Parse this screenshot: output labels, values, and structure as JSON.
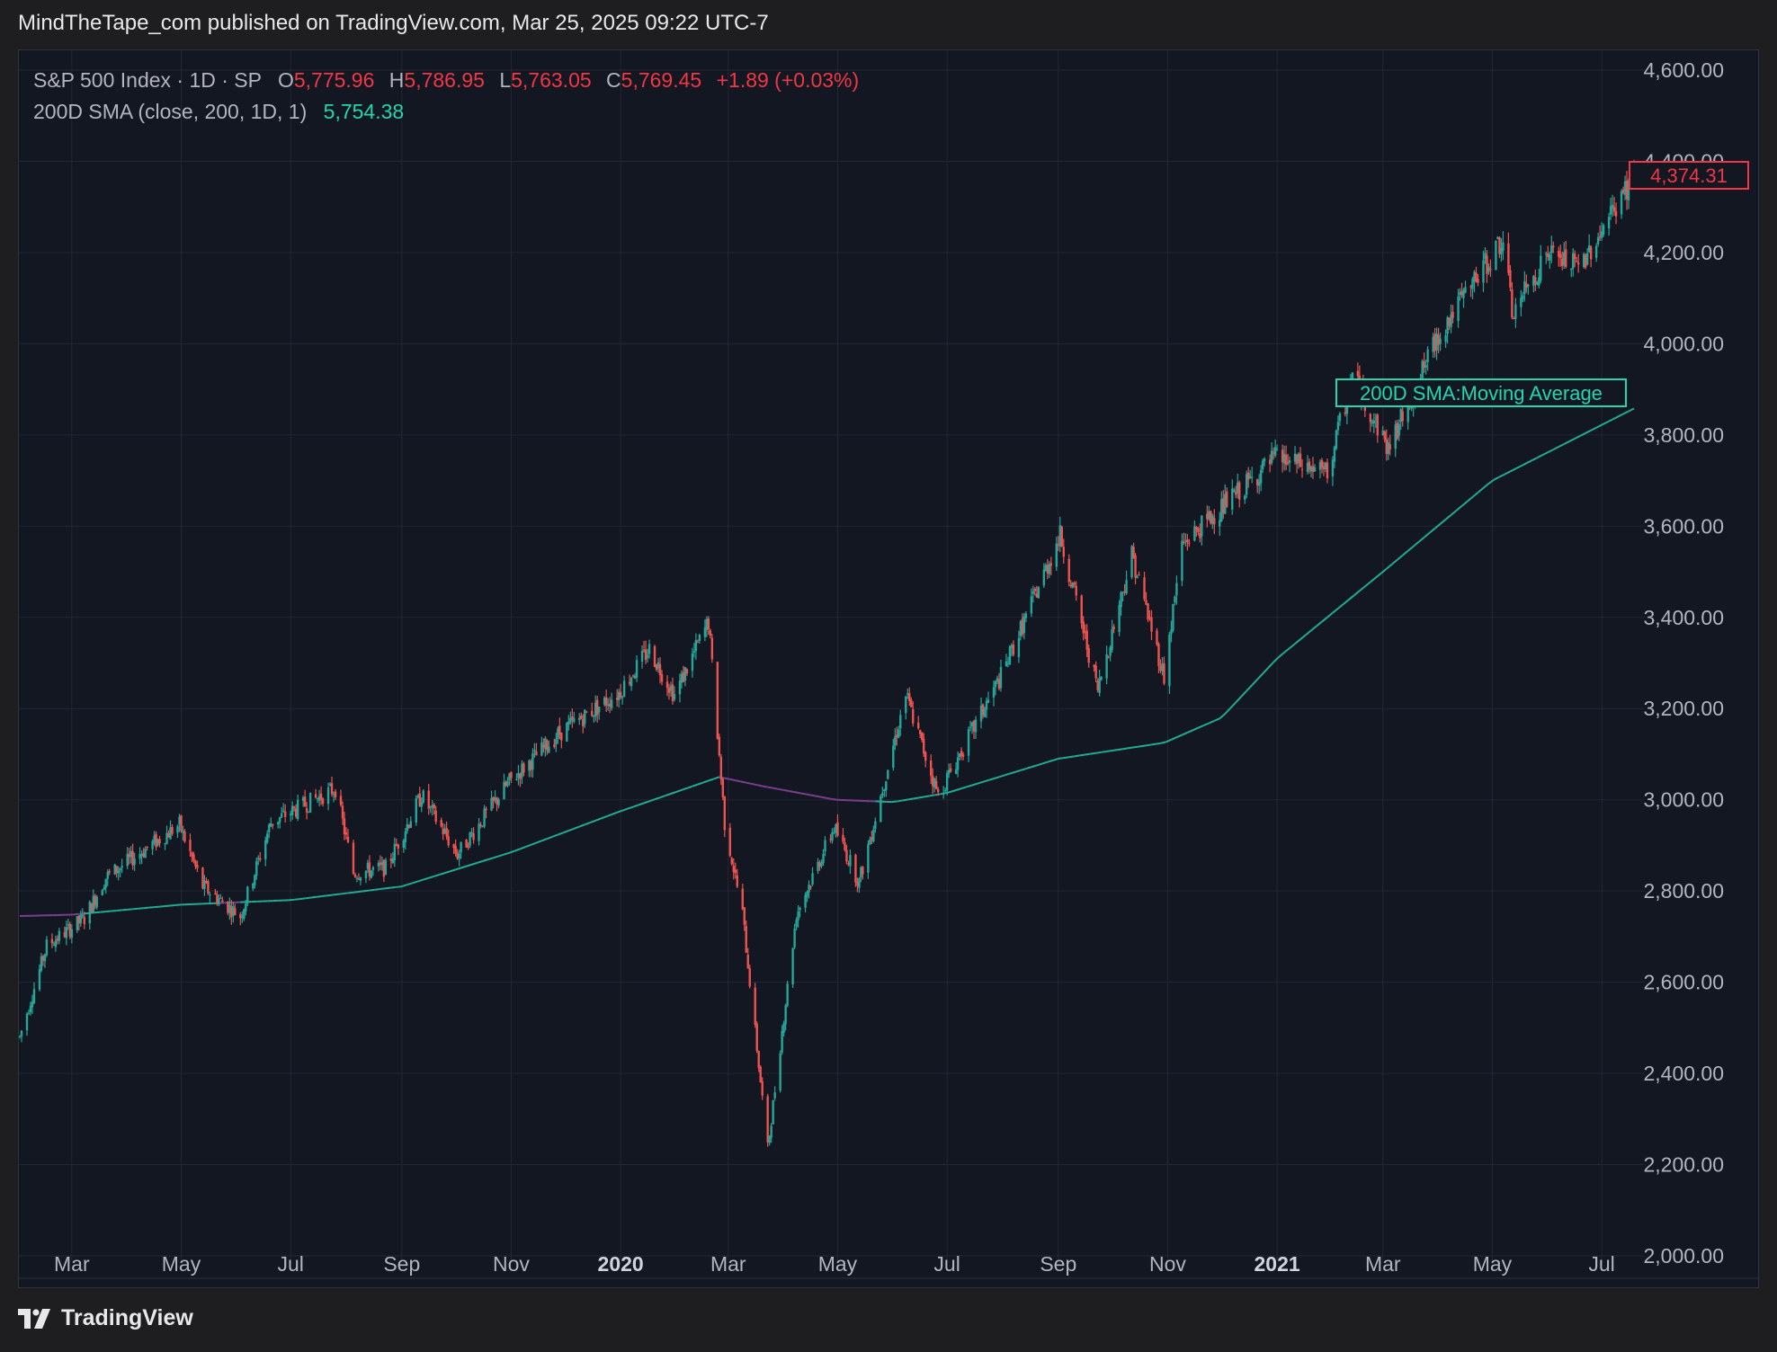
{
  "header": {
    "publisher": "MindTheTape_com published on TradingView.com, Mar 25, 2025 09:22 UTC-7"
  },
  "legend": {
    "symbol_line": "S&P 500 Index · 1D · SP",
    "open_label": "O",
    "open": "5,775.96",
    "high_label": "H",
    "high": "5,786.95",
    "low_label": "L",
    "low": "5,763.05",
    "close_label": "C",
    "close": "5,769.45",
    "change": "+1.89 (+0.03%)",
    "sma_line": "200D SMA (close, 200, 1D, 1)",
    "sma_value": "5,754.38"
  },
  "annotation": {
    "label": "200D SMA:Moving Average"
  },
  "price_tag": "4,374.31",
  "footer": {
    "brand": "TradingView",
    "logo_icon": "tradingview-logo-icon"
  },
  "colors": {
    "background": "#131722",
    "up": "#26a69a",
    "down": "#ef5350",
    "sma_above": "#22ab94",
    "sma_below": "#7b3e8f",
    "text": "#b2b5be",
    "grid": "#232733"
  },
  "chart_data": {
    "type": "candlestick",
    "title": "S&P 500 Index · 1D · SP",
    "ylim": [
      1950,
      4650
    ],
    "y_ticks": [
      "4,600.00",
      "4,400.00",
      "4,200.00",
      "4,000.00",
      "3,800.00",
      "3,600.00",
      "3,400.00",
      "3,200.00",
      "3,000.00",
      "2,800.00",
      "2,600.00",
      "2,400.00",
      "2,200.00",
      "2,000.00"
    ],
    "y_tick_values": [
      4600,
      4400,
      4200,
      4000,
      3800,
      3600,
      3400,
      3200,
      3000,
      2800,
      2600,
      2400,
      2200,
      2000
    ],
    "x_ticks": [
      {
        "label": "Mar",
        "date": "2019-03-01",
        "bold": false
      },
      {
        "label": "May",
        "date": "2019-05-01",
        "bold": false
      },
      {
        "label": "Jul",
        "date": "2019-07-01",
        "bold": false
      },
      {
        "label": "Sep",
        "date": "2019-09-01",
        "bold": false
      },
      {
        "label": "Nov",
        "date": "2019-11-01",
        "bold": false
      },
      {
        "label": "2020",
        "date": "2020-01-01",
        "bold": true
      },
      {
        "label": "Mar",
        "date": "2020-03-01",
        "bold": false
      },
      {
        "label": "May",
        "date": "2020-05-01",
        "bold": false
      },
      {
        "label": "Jul",
        "date": "2020-07-01",
        "bold": false
      },
      {
        "label": "Sep",
        "date": "2020-09-01",
        "bold": false
      },
      {
        "label": "Nov",
        "date": "2020-11-01",
        "bold": false
      },
      {
        "label": "2021",
        "date": "2021-01-01",
        "bold": true
      },
      {
        "label": "Mar",
        "date": "2021-03-01",
        "bold": false
      },
      {
        "label": "May",
        "date": "2021-05-01",
        "bold": false
      },
      {
        "label": "Jul",
        "date": "2021-07-01",
        "bold": false
      }
    ],
    "x_range": [
      "2019-01-31",
      "2021-07-20"
    ],
    "price_path": [
      [
        "2019-01-31",
        2480
      ],
      [
        "2019-02-15",
        2680
      ],
      [
        "2019-03-08",
        2740
      ],
      [
        "2019-03-20",
        2830
      ],
      [
        "2019-04-30",
        2945
      ],
      [
        "2019-05-13",
        2810
      ],
      [
        "2019-06-03",
        2745
      ],
      [
        "2019-06-20",
        2950
      ],
      [
        "2019-07-26",
        3025
      ],
      [
        "2019-08-05",
        2840
      ],
      [
        "2019-08-23",
        2850
      ],
      [
        "2019-09-12",
        3010
      ],
      [
        "2019-10-02",
        2880
      ],
      [
        "2019-10-31",
        3040
      ],
      [
        "2019-11-29",
        3150
      ],
      [
        "2019-12-31",
        3235
      ],
      [
        "2020-01-17",
        3330
      ],
      [
        "2020-01-31",
        3230
      ],
      [
        "2020-02-19",
        3390
      ],
      [
        "2020-02-28",
        2950
      ],
      [
        "2020-03-09",
        2750
      ],
      [
        "2020-03-23",
        2235
      ],
      [
        "2020-04-08",
        2750
      ],
      [
        "2020-04-29",
        2940
      ],
      [
        "2020-05-13",
        2820
      ],
      [
        "2020-06-08",
        3230
      ],
      [
        "2020-06-26",
        3010
      ],
      [
        "2020-07-31",
        3270
      ],
      [
        "2020-09-02",
        3580
      ],
      [
        "2020-09-23",
        3240
      ],
      [
        "2020-10-12",
        3540
      ],
      [
        "2020-10-30",
        3270
      ],
      [
        "2020-11-09",
        3560
      ],
      [
        "2020-12-31",
        3750
      ],
      [
        "2021-01-29",
        3715
      ],
      [
        "2021-02-12",
        3930
      ],
      [
        "2021-03-04",
        3770
      ],
      [
        "2021-04-01",
        4020
      ],
      [
        "2021-05-07",
        4230
      ],
      [
        "2021-05-12",
        4065
      ],
      [
        "2021-06-01",
        4200
      ],
      [
        "2021-06-18",
        4165
      ],
      [
        "2021-07-20",
        4374
      ]
    ],
    "sma": [
      [
        "2019-01-31",
        2745
      ],
      [
        "2019-03-01",
        2748
      ],
      [
        "2019-05-01",
        2770
      ],
      [
        "2019-07-01",
        2780
      ],
      [
        "2019-09-01",
        2810
      ],
      [
        "2019-11-01",
        2885
      ],
      [
        "2020-01-01",
        2975
      ],
      [
        "2020-02-25",
        3050
      ],
      [
        "2020-03-20",
        3030
      ],
      [
        "2020-04-30",
        3000
      ],
      [
        "2020-06-01",
        2995
      ],
      [
        "2020-07-01",
        3015
      ],
      [
        "2020-09-01",
        3090
      ],
      [
        "2020-10-30",
        3125
      ],
      [
        "2020-12-01",
        3180
      ],
      [
        "2021-01-01",
        3310
      ],
      [
        "2021-03-01",
        3500
      ],
      [
        "2021-05-01",
        3700
      ],
      [
        "2021-07-20",
        3860
      ]
    ],
    "last_close": 4374.31
  }
}
